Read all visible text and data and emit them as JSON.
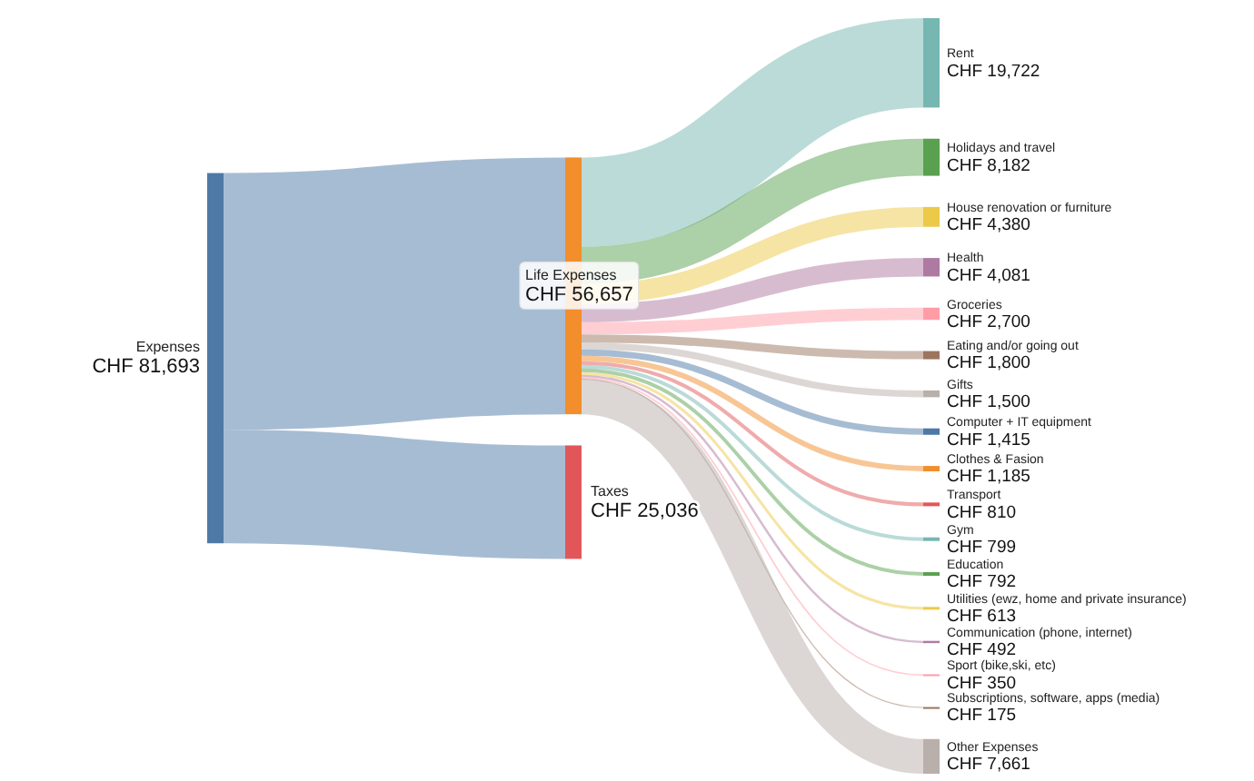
{
  "chart_data": {
    "type": "other",
    "categories": [
      "Expenses",
      "Life Expenses",
      "Taxes",
      "Rent",
      "Holidays and travel",
      "House renovation or furniture",
      "Health",
      "Groceries",
      "Eating and/or going out",
      "Gifts",
      "Computer + IT equipment",
      "Clothes & Fasion",
      "Transport",
      "Gym",
      "Education",
      "Utilities (ewz, home and private insurance)",
      "Communication (phone, internet)",
      "Sport (bike,ski, etc)",
      "Subscriptions, software, apps (media)",
      "Other Expenses"
    ],
    "series": [
      {
        "values": [
          81693,
          null,
          null,
          null,
          null,
          null,
          null,
          null,
          null,
          null,
          null,
          null,
          null,
          null,
          null,
          null,
          null,
          null,
          null,
          null
        ],
        "value_labels": [
          "CHF 81,693",
          null,
          null,
          null,
          null,
          null,
          null,
          null,
          null,
          null,
          null,
          null,
          null,
          null,
          null,
          null,
          null,
          null,
          null,
          null
        ],
        "colors": [
          "#4e79a7",
          null,
          null,
          null,
          null,
          null,
          null,
          null,
          null,
          null,
          null,
          null,
          null,
          null,
          null,
          null,
          null,
          null,
          null,
          null
        ]
      },
      {
        "values": [
          null,
          56657,
          25036,
          null,
          null,
          null,
          null,
          null,
          null,
          null,
          null,
          null,
          null,
          null,
          null,
          null,
          null,
          null,
          null,
          null
        ],
        "value_labels": [
          null,
          "CHF 56,657",
          "CHF 25,036",
          null,
          null,
          null,
          null,
          null,
          null,
          null,
          null,
          null,
          null,
          null,
          null,
          null,
          null,
          null,
          null,
          null
        ],
        "colors": [
          null,
          "#f28e2c",
          "#e15759",
          null,
          null,
          null,
          null,
          null,
          null,
          null,
          null,
          null,
          null,
          null,
          null,
          null,
          null,
          null,
          null,
          null
        ]
      },
      {
        "values": [
          null,
          null,
          null,
          19722,
          8182,
          4380,
          4081,
          2700,
          1800,
          1500,
          1415,
          1185,
          810,
          799,
          792,
          613,
          492,
          350,
          175,
          7661
        ],
        "value_labels": [
          null,
          null,
          null,
          "CHF 19,722",
          "CHF 8,182",
          "CHF 4,380",
          "CHF 4,081",
          "CHF 2,700",
          "CHF 1,800",
          "CHF 1,500",
          "CHF 1,415",
          "CHF 1,185",
          "CHF 810",
          "CHF 799",
          "CHF 792",
          "CHF 613",
          "CHF 492",
          "CHF 350",
          "CHF 175",
          "CHF 7,661"
        ],
        "colors": [
          null,
          null,
          null,
          "#76b7b2",
          "#59a14f",
          "#edc949",
          "#af7aa1",
          "#ff9da7",
          "#9c755f",
          "#bab0ab",
          "#4e79a7",
          "#f28e2c",
          "#e15759",
          "#76b7b2",
          "#59a14f",
          "#edc949",
          "#af7aa1",
          "#ff9da7",
          "#9c755f",
          "#bab0ab"
        ]
      }
    ]
  }
}
